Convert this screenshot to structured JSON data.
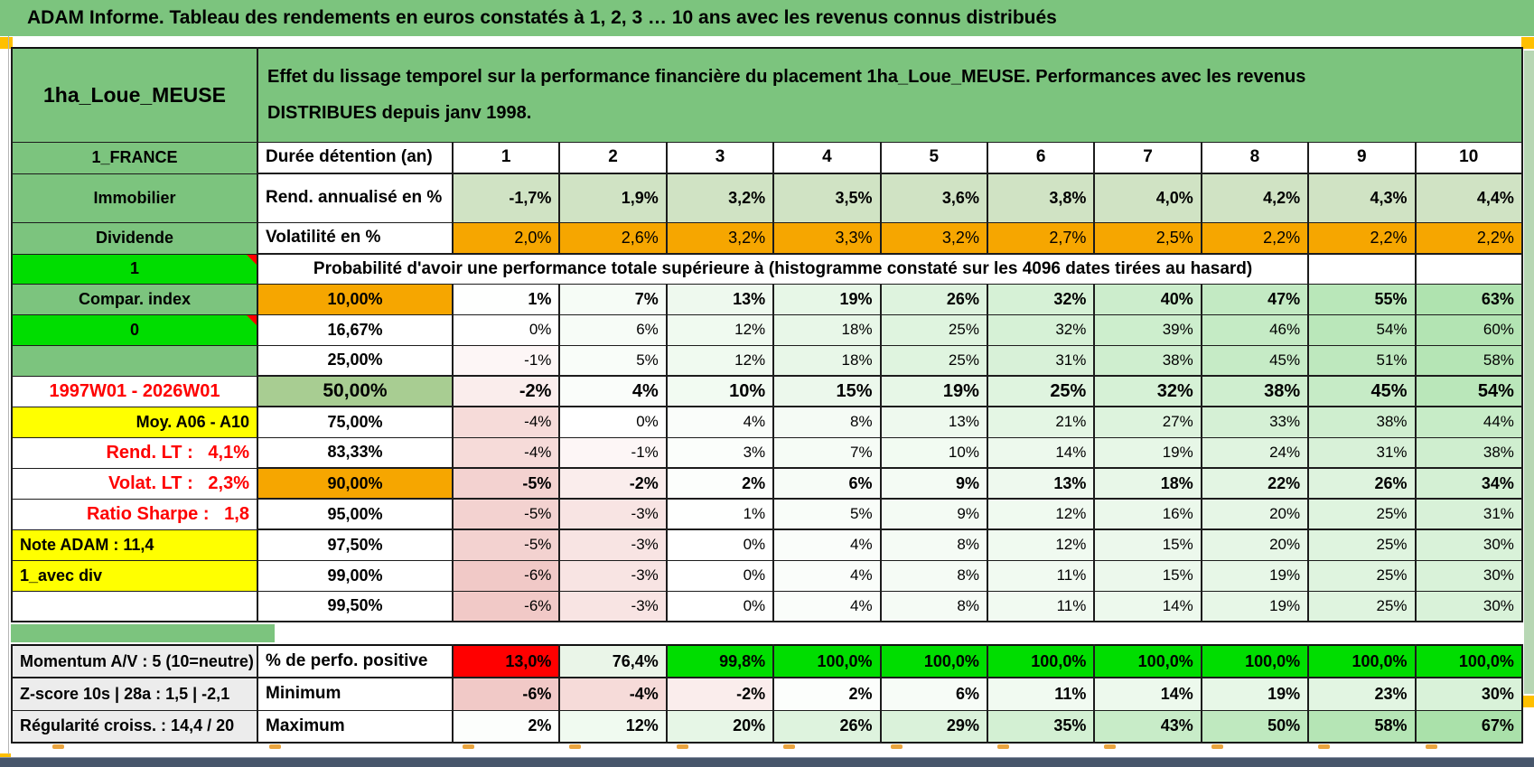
{
  "title": "ADAM Informe. Tableau des rendements en euros constatés à 1, 2, 3 … 10 ans avec les revenus connus distribués",
  "header": {
    "asset": "1ha_Loue_MEUSE",
    "description": "Effet du lissage temporel sur la performance financière du placement 1ha_Loue_MEUSE. Performances avec les revenus DISTRIBUES depuis janv 1998."
  },
  "left_column": [
    {
      "text": "1ha_Loue_MEUSE",
      "bg": "green",
      "align": "center",
      "size": "xl"
    },
    {
      "text": "1_FRANCE",
      "bg": "green",
      "align": "center"
    },
    {
      "text": "Immobilier",
      "bg": "green",
      "align": "center"
    },
    {
      "text": "Dividende",
      "bg": "green",
      "align": "center"
    },
    {
      "text": "1",
      "bg": "bright",
      "align": "center",
      "corner": true
    },
    {
      "text": "Compar. index",
      "bg": "green",
      "align": "center"
    },
    {
      "text": "0",
      "bg": "bright",
      "align": "center",
      "corner": true
    },
    {
      "text": "",
      "bg": "green",
      "align": "center"
    },
    {
      "text": "1997W01 - 2026W01",
      "bg": "white",
      "fg": "red",
      "align": "center"
    },
    {
      "text": "Moy. A06 - A10",
      "bg": "yellow",
      "align": "right"
    },
    {
      "text": "Rend. LT :   4,1%",
      "bg": "white",
      "fg": "red",
      "align": "right"
    },
    {
      "text": "Volat. LT :   2,3%",
      "bg": "white",
      "fg": "red",
      "align": "right"
    },
    {
      "text": "Ratio Sharpe :   1,8",
      "bg": "white",
      "fg": "red",
      "align": "right"
    },
    {
      "text": "Note ADAM : 11,4",
      "bg": "yellow",
      "align": "left"
    },
    {
      "text": "1_avec div",
      "bg": "yellow",
      "align": "left"
    },
    {
      "text": "",
      "bg": "white",
      "align": "center"
    }
  ],
  "table": {
    "duration_label": "Durée détention (an)",
    "durations": [
      "1",
      "2",
      "3",
      "4",
      "5",
      "6",
      "7",
      "8",
      "9",
      "10"
    ],
    "rend_label": "Rend. annualisé en %",
    "rend_values": [
      "-1,7%",
      "1,9%",
      "3,2%",
      "3,5%",
      "3,6%",
      "3,8%",
      "4,0%",
      "4,2%",
      "4,3%",
      "4,4%"
    ],
    "volat_label": "Volatilité en %",
    "volat_values": [
      "2,0%",
      "2,6%",
      "3,2%",
      "3,3%",
      "3,2%",
      "2,7%",
      "2,5%",
      "2,2%",
      "2,2%",
      "2,2%"
    ],
    "probability_title": "Probabilité d'avoir une performance totale supérieure à (histogramme constaté sur les 4096 dates tirées au hasard)",
    "probability_rows": [
      {
        "threshold": "10,00%",
        "label_bg": "orange",
        "emphasis": true,
        "values": [
          "1%",
          "7%",
          "13%",
          "19%",
          "26%",
          "32%",
          "40%",
          "47%",
          "55%",
          "63%"
        ]
      },
      {
        "threshold": "16,67%",
        "label_bg": "white",
        "emphasis": false,
        "values": [
          "0%",
          "6%",
          "12%",
          "18%",
          "25%",
          "32%",
          "39%",
          "46%",
          "54%",
          "60%"
        ]
      },
      {
        "threshold": "25,00%",
        "label_bg": "white",
        "emphasis": false,
        "values": [
          "-1%",
          "5%",
          "12%",
          "18%",
          "25%",
          "31%",
          "38%",
          "45%",
          "51%",
          "58%"
        ]
      },
      {
        "threshold": "50,00%",
        "label_bg": "sage",
        "emphasis": true,
        "size": "lg",
        "values": [
          "-2%",
          "4%",
          "10%",
          "15%",
          "19%",
          "25%",
          "32%",
          "38%",
          "45%",
          "54%"
        ]
      },
      {
        "threshold": "75,00%",
        "label_bg": "white",
        "emphasis": false,
        "values": [
          "-4%",
          "0%",
          "4%",
          "8%",
          "13%",
          "21%",
          "27%",
          "33%",
          "38%",
          "44%"
        ]
      },
      {
        "threshold": "83,33%",
        "label_bg": "white",
        "emphasis": false,
        "values": [
          "-4%",
          "-1%",
          "3%",
          "7%",
          "10%",
          "14%",
          "19%",
          "24%",
          "31%",
          "38%"
        ]
      },
      {
        "threshold": "90,00%",
        "label_bg": "orange",
        "emphasis": true,
        "values": [
          "-5%",
          "-2%",
          "2%",
          "6%",
          "9%",
          "13%",
          "18%",
          "22%",
          "26%",
          "34%"
        ]
      },
      {
        "threshold": "95,00%",
        "label_bg": "white",
        "emphasis": false,
        "values": [
          "-5%",
          "-3%",
          "1%",
          "5%",
          "9%",
          "12%",
          "16%",
          "20%",
          "25%",
          "31%"
        ]
      },
      {
        "threshold": "97,50%",
        "label_bg": "white",
        "emphasis": false,
        "values": [
          "-5%",
          "-3%",
          "0%",
          "4%",
          "8%",
          "12%",
          "15%",
          "20%",
          "25%",
          "30%"
        ]
      },
      {
        "threshold": "99,00%",
        "label_bg": "white",
        "emphasis": false,
        "values": [
          "-6%",
          "-3%",
          "0%",
          "4%",
          "8%",
          "11%",
          "15%",
          "19%",
          "25%",
          "30%"
        ]
      },
      {
        "threshold": "99,50%",
        "label_bg": "white",
        "emphasis": false,
        "values": [
          "-6%",
          "-3%",
          "0%",
          "4%",
          "8%",
          "11%",
          "14%",
          "19%",
          "25%",
          "30%"
        ]
      }
    ]
  },
  "bottom": {
    "rows": [
      {
        "left": "Momentum A/V : 5 (10=neutre)",
        "label": "% de perfo. positive",
        "type": "perfo",
        "values": [
          "13,0%",
          "76,4%",
          "99,8%",
          "100,0%",
          "100,0%",
          "100,0%",
          "100,0%",
          "100,0%",
          "100,0%",
          "100,0%"
        ]
      },
      {
        "left": "Z-score 10s | 28a : 1,5 | -2,1",
        "label": "Minimum",
        "type": "scale",
        "values": [
          "-6%",
          "-4%",
          "-2%",
          "2%",
          "6%",
          "11%",
          "14%",
          "19%",
          "23%",
          "30%"
        ]
      },
      {
        "left": "Régularité croiss. : 14,4 / 20",
        "label": "Maximum",
        "type": "scale",
        "values": [
          "2%",
          "12%",
          "20%",
          "26%",
          "29%",
          "35%",
          "43%",
          "50%",
          "58%",
          "67%"
        ]
      }
    ]
  },
  "colors": {
    "frame_green": "#7cc47e",
    "sage_green": "#a8cd92",
    "rend_green": "#d0e3c4",
    "bright_green": "#00dd00",
    "orange": "#f6a600",
    "yellow": "#ffff00",
    "red_text": "#fe0000",
    "perfo_red": "#ff0000",
    "corner_orange": "#ffc000",
    "bottom_bar": "#47566b",
    "gray_label": "#ececec"
  }
}
